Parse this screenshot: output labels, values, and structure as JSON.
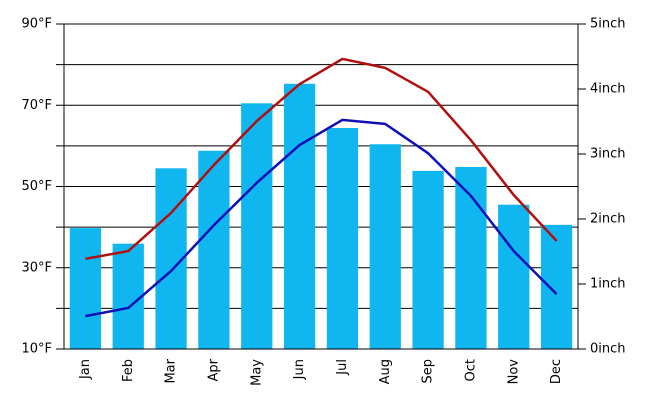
{
  "chart_data": {
    "type": "bar-line",
    "categories": [
      "Jan",
      "Feb",
      "Mar",
      "Apr",
      "May",
      "Jun",
      "Jul",
      "Aug",
      "Sep",
      "Oct",
      "Nov",
      "Dec"
    ],
    "series": [
      {
        "type": "bar",
        "axis": "y2",
        "color": "#10b6f0",
        "values": [
          1.86,
          1.62,
          2.78,
          3.05,
          3.78,
          4.08,
          3.4,
          3.15,
          2.74,
          2.8,
          2.22,
          1.91
        ]
      },
      {
        "type": "line",
        "color": "#b01010",
        "values": [
          32.2,
          34.1,
          43.5,
          55.3,
          66.1,
          75.2,
          81.4,
          79.2,
          73.3,
          61.4,
          47.9,
          36.6
        ]
      },
      {
        "type": "line",
        "color": "#1010b8",
        "values": [
          18.1,
          20.1,
          29.2,
          40.5,
          50.9,
          60.2,
          66.4,
          65.4,
          58.2,
          47.7,
          34.1,
          23.5
        ]
      }
    ],
    "ylim": [
      10,
      90
    ],
    "yticks": [
      {
        "value": 10,
        "label": "10°F"
      },
      {
        "value": 20,
        "label": null
      },
      {
        "value": 30,
        "label": "30°F"
      },
      {
        "value": 40,
        "label": null
      },
      {
        "value": 50,
        "label": "50°F"
      },
      {
        "value": 60,
        "label": null
      },
      {
        "value": 70,
        "label": "70°F"
      },
      {
        "value": 80,
        "label": null
      },
      {
        "value": 90,
        "label": "90°F"
      }
    ],
    "y2lim": [
      0,
      5
    ],
    "y2ticks": [
      {
        "value": 0,
        "label": "0inch"
      },
      {
        "value": 1,
        "label": "1inch"
      },
      {
        "value": 2,
        "label": "2inch"
      },
      {
        "value": 3,
        "label": "3inch"
      },
      {
        "value": 4,
        "label": "4inch"
      },
      {
        "value": 5,
        "label": "5inch"
      }
    ],
    "grid": true
  }
}
